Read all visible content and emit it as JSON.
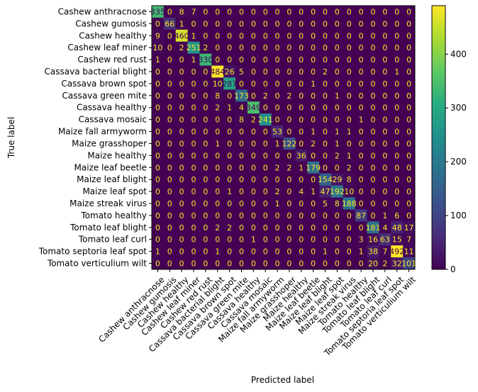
{
  "chart_data": {
    "type": "heatmap",
    "xlabel": "Predicted label",
    "ylabel": "True label",
    "colormap": "viridis",
    "vmin": 0,
    "vmax": 490,
    "colorbar_ticks": [
      0,
      100,
      200,
      300,
      400
    ],
    "labels": [
      "Cashew anthracnose",
      "Cashew gumosis",
      "Cashew healthy",
      "Cashew leaf miner",
      "Cashew red rust",
      "Cassava bacterial blight",
      "Cassava brown spot",
      "Cassava green mite",
      "Cassava healthy",
      "Cassava mosaic",
      "Maize fall armyworm",
      "Maize grasshoper",
      "Maize healthy",
      "Maize leaf beetle",
      "Maize leaf blight",
      "Maize leaf spot",
      "Maize streak virus",
      "Tomato healthy",
      "Tomato leaf blight",
      "Tomato leaf curl",
      "Tomato septoria leaf spot",
      "Tomato verticulium wilt"
    ],
    "matrix": [
      [
        335,
        0,
        8,
        7,
        0,
        0,
        0,
        0,
        0,
        0,
        0,
        0,
        0,
        0,
        0,
        0,
        0,
        0,
        0,
        0,
        0,
        0
      ],
      [
        0,
        66,
        1,
        0,
        0,
        0,
        0,
        0,
        0,
        0,
        0,
        0,
        0,
        0,
        0,
        0,
        0,
        0,
        0,
        0,
        0,
        0
      ],
      [
        9,
        0,
        460,
        1,
        0,
        0,
        0,
        0,
        0,
        0,
        0,
        0,
        0,
        0,
        0,
        0,
        0,
        0,
        0,
        0,
        0,
        0
      ],
      [
        10,
        0,
        2,
        251,
        2,
        0,
        0,
        0,
        0,
        0,
        0,
        0,
        0,
        0,
        0,
        0,
        0,
        0,
        0,
        0,
        0,
        0
      ],
      [
        1,
        0,
        0,
        1,
        330,
        0,
        0,
        0,
        0,
        0,
        0,
        0,
        0,
        0,
        0,
        0,
        0,
        0,
        0,
        0,
        0,
        0
      ],
      [
        0,
        0,
        0,
        0,
        0,
        484,
        26,
        5,
        0,
        0,
        0,
        0,
        0,
        0,
        2,
        0,
        0,
        0,
        0,
        0,
        1,
        0
      ],
      [
        0,
        0,
        0,
        0,
        0,
        10,
        287,
        0,
        0,
        0,
        0,
        0,
        0,
        1,
        0,
        0,
        0,
        0,
        0,
        0,
        0,
        0
      ],
      [
        0,
        0,
        0,
        0,
        0,
        8,
        0,
        173,
        0,
        2,
        0,
        2,
        0,
        0,
        0,
        1,
        0,
        0,
        0,
        0,
        0,
        0
      ],
      [
        0,
        0,
        0,
        0,
        0,
        2,
        1,
        4,
        349,
        0,
        0,
        0,
        0,
        0,
        0,
        0,
        0,
        0,
        0,
        0,
        0,
        0
      ],
      [
        0,
        0,
        0,
        0,
        0,
        0,
        0,
        8,
        2,
        241,
        0,
        0,
        0,
        0,
        0,
        0,
        0,
        1,
        0,
        0,
        0,
        0
      ],
      [
        0,
        0,
        0,
        0,
        0,
        0,
        0,
        0,
        0,
        0,
        53,
        0,
        0,
        1,
        0,
        1,
        1,
        0,
        0,
        0,
        0,
        0
      ],
      [
        0,
        0,
        0,
        0,
        0,
        1,
        0,
        0,
        0,
        0,
        1,
        122,
        0,
        2,
        0,
        1,
        0,
        0,
        0,
        0,
        0,
        0
      ],
      [
        0,
        0,
        0,
        0,
        0,
        0,
        0,
        0,
        0,
        0,
        0,
        0,
        36,
        0,
        0,
        2,
        1,
        0,
        0,
        0,
        0,
        0
      ],
      [
        0,
        0,
        0,
        0,
        0,
        0,
        0,
        0,
        0,
        0,
        2,
        2,
        1,
        179,
        0,
        0,
        2,
        0,
        0,
        0,
        0,
        0
      ],
      [
        0,
        0,
        0,
        0,
        0,
        0,
        0,
        0,
        0,
        0,
        0,
        0,
        0,
        0,
        154,
        29,
        8,
        0,
        0,
        0,
        0,
        0
      ],
      [
        0,
        0,
        0,
        0,
        0,
        0,
        1,
        0,
        0,
        0,
        2,
        0,
        4,
        1,
        47,
        192,
        10,
        0,
        0,
        0,
        0,
        0
      ],
      [
        0,
        0,
        0,
        0,
        0,
        0,
        0,
        0,
        0,
        0,
        1,
        0,
        0,
        0,
        5,
        8,
        188,
        0,
        0,
        0,
        0,
        0
      ],
      [
        0,
        0,
        0,
        0,
        0,
        0,
        0,
        0,
        0,
        0,
        0,
        0,
        0,
        0,
        0,
        0,
        0,
        87,
        0,
        1,
        6,
        0
      ],
      [
        0,
        0,
        0,
        0,
        0,
        2,
        2,
        0,
        0,
        0,
        0,
        0,
        0,
        0,
        0,
        0,
        0,
        0,
        181,
        4,
        48,
        17
      ],
      [
        0,
        0,
        0,
        0,
        0,
        0,
        0,
        0,
        1,
        0,
        0,
        0,
        0,
        0,
        0,
        0,
        0,
        3,
        16,
        63,
        15,
        7
      ],
      [
        1,
        0,
        0,
        0,
        0,
        1,
        0,
        0,
        0,
        0,
        0,
        0,
        0,
        0,
        1,
        0,
        0,
        1,
        38,
        7,
        492,
        11
      ],
      [
        0,
        0,
        0,
        0,
        0,
        0,
        0,
        0,
        0,
        0,
        0,
        0,
        0,
        0,
        0,
        0,
        0,
        0,
        20,
        2,
        32,
        101
      ]
    ]
  }
}
